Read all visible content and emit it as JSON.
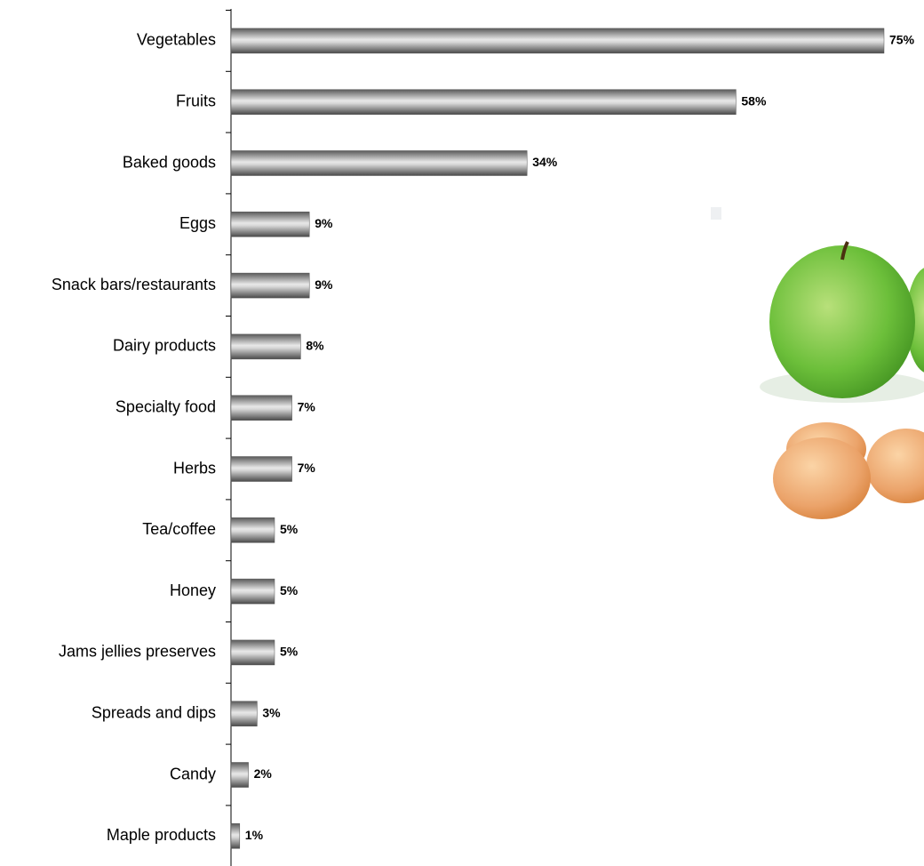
{
  "chart_data": {
    "type": "bar",
    "orientation": "horizontal",
    "categories": [
      "Vegetables",
      "Fruits",
      "Baked goods",
      "Eggs",
      "Snack bars/restaurants",
      "Dairy products",
      "Specialty food",
      "Herbs",
      "Tea/coffee",
      "Honey",
      "Jams jellies preserves",
      "Spreads and dips",
      "Candy",
      "Maple products"
    ],
    "values": [
      75,
      58,
      34,
      9,
      9,
      8,
      7,
      7,
      5,
      5,
      5,
      3,
      2,
      1
    ],
    "value_labels": [
      "75%",
      "58%",
      "34%",
      "9%",
      "9%",
      "8%",
      "7%",
      "7%",
      "5%",
      "5%",
      "5%",
      "3%",
      "2%",
      "1%"
    ],
    "color": "#808080"
  }
}
